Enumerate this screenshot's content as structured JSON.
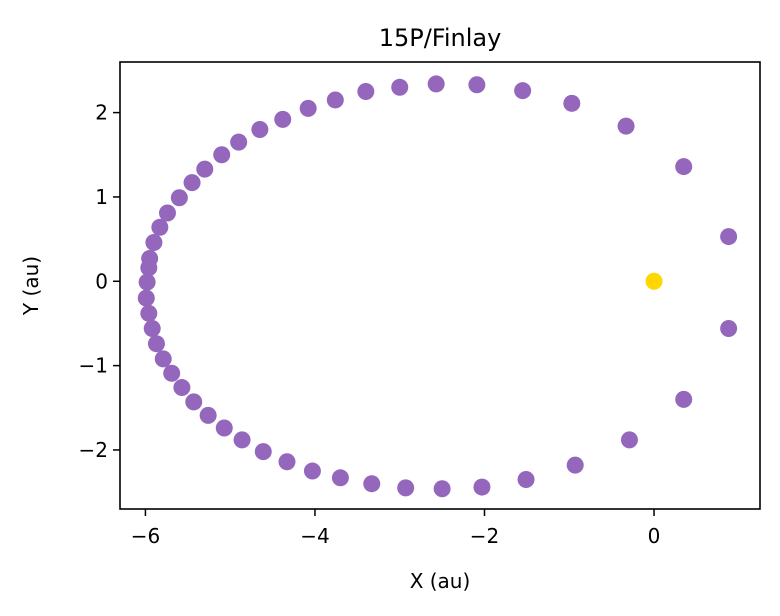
{
  "chart_data": {
    "type": "scatter",
    "title": "15P/Finlay",
    "xlabel": "X (au)",
    "ylabel": "Y (au)",
    "xlim": [
      -6.3,
      1.25
    ],
    "ylim": [
      -2.7,
      2.6
    ],
    "xticks": [
      -6,
      -4,
      -2,
      0
    ],
    "yticks": [
      -2,
      -1,
      0,
      1,
      2
    ],
    "xtick_labels": [
      "−6",
      "−4",
      "−2",
      "0"
    ],
    "ytick_labels": [
      "−2",
      "−1",
      "0",
      "1",
      "2"
    ],
    "grid": false,
    "series": [
      {
        "color": "#9467bd",
        "points": [
          [
            0.88,
            0.53
          ],
          [
            0.35,
            1.36
          ],
          [
            -0.33,
            1.84
          ],
          [
            -0.97,
            2.11
          ],
          [
            -1.55,
            2.26
          ],
          [
            -2.09,
            2.33
          ],
          [
            -2.57,
            2.34
          ],
          [
            -3.0,
            2.3
          ],
          [
            -3.4,
            2.25
          ],
          [
            -3.76,
            2.15
          ],
          [
            -4.08,
            2.05
          ],
          [
            -4.38,
            1.92
          ],
          [
            -4.65,
            1.8
          ],
          [
            -4.9,
            1.65
          ],
          [
            -5.1,
            1.5
          ],
          [
            -5.3,
            1.33
          ],
          [
            -5.45,
            1.17
          ],
          [
            -5.6,
            0.99
          ],
          [
            -5.74,
            0.81
          ],
          [
            -5.83,
            0.64
          ],
          [
            -5.9,
            0.46
          ],
          [
            -5.95,
            0.27
          ],
          [
            -5.96,
            0.16
          ],
          [
            -5.98,
            -0.01
          ],
          [
            -5.99,
            -0.2
          ],
          [
            -5.96,
            -0.38
          ],
          [
            -5.92,
            -0.56
          ],
          [
            -5.87,
            -0.74
          ],
          [
            -5.79,
            -0.92
          ],
          [
            -5.69,
            -1.09
          ],
          [
            -5.57,
            -1.26
          ],
          [
            -5.43,
            -1.43
          ],
          [
            -5.26,
            -1.59
          ],
          [
            -5.07,
            -1.74
          ],
          [
            -4.86,
            -1.88
          ],
          [
            -4.61,
            -2.02
          ],
          [
            -4.33,
            -2.14
          ],
          [
            -4.03,
            -2.25
          ],
          [
            -3.7,
            -2.33
          ],
          [
            -3.33,
            -2.4
          ],
          [
            -2.93,
            -2.45
          ],
          [
            -2.5,
            -2.46
          ],
          [
            -2.03,
            -2.44
          ],
          [
            -1.51,
            -2.35
          ],
          [
            -0.93,
            -2.18
          ],
          [
            -0.29,
            -1.88
          ],
          [
            0.35,
            -1.4
          ],
          [
            0.88,
            -0.56
          ]
        ]
      },
      {
        "color": "#ffd700",
        "points": [
          [
            0.0,
            0.0
          ]
        ]
      }
    ]
  }
}
